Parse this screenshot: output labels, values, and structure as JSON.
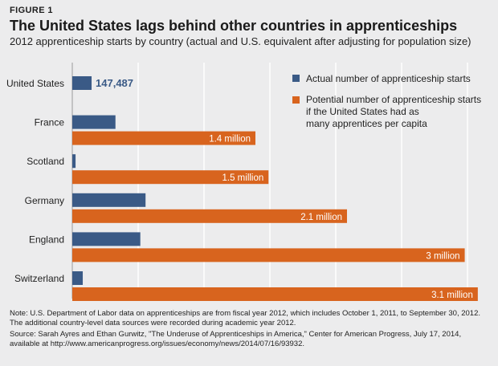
{
  "figure_label": "FIGURE 1",
  "title": "The United States lags behind other countries in apprenticeships",
  "subtitle": "2012 apprenticeship starts by country (actual and U.S. equivalent after adjusting for population size)",
  "colors": {
    "actual": "#3a5a86",
    "potential": "#d8641e",
    "grid": "#ffffff",
    "background": "#ececed"
  },
  "chart_data": {
    "type": "bar",
    "orientation": "horizontal",
    "categories": [
      "United States",
      "France",
      "Scotland",
      "Germany",
      "England",
      "Switzerland"
    ],
    "series": [
      {
        "name": "Actual number of apprenticeship starts",
        "values": [
          147487,
          330000,
          25000,
          560000,
          520000,
          80000
        ]
      },
      {
        "name": "Potential number of apprenticeship starts if the United States had as many apprentices per capita",
        "values": [
          null,
          1400000,
          1500000,
          2100000,
          3000000,
          3100000
        ]
      }
    ],
    "data_labels": {
      "actual": [
        "147,487",
        "",
        "",
        "",
        "",
        ""
      ],
      "potential": [
        "",
        "1.4 million",
        "1.5 million",
        "2.1 million",
        "3 million",
        "3.1 million"
      ]
    },
    "xlim": [
      0,
      3150000
    ],
    "grid": true,
    "legend_position": "top-right"
  },
  "notes": {
    "note": "Note: U.S. Department of Labor data on apprenticeships are from fiscal year 2012, which includes October 1, 2011, to September 30, 2012. The additional country-level data sources were recorded during academic year 2012.",
    "source": "Source: Sarah Ayres and Ethan Gurwitz, \"The Underuse of Apprenticeships in America,\" Center for American Progress, July 17, 2014, available at http://www.americanprogress.org/issues/economy/news/2014/07/16/93932."
  }
}
